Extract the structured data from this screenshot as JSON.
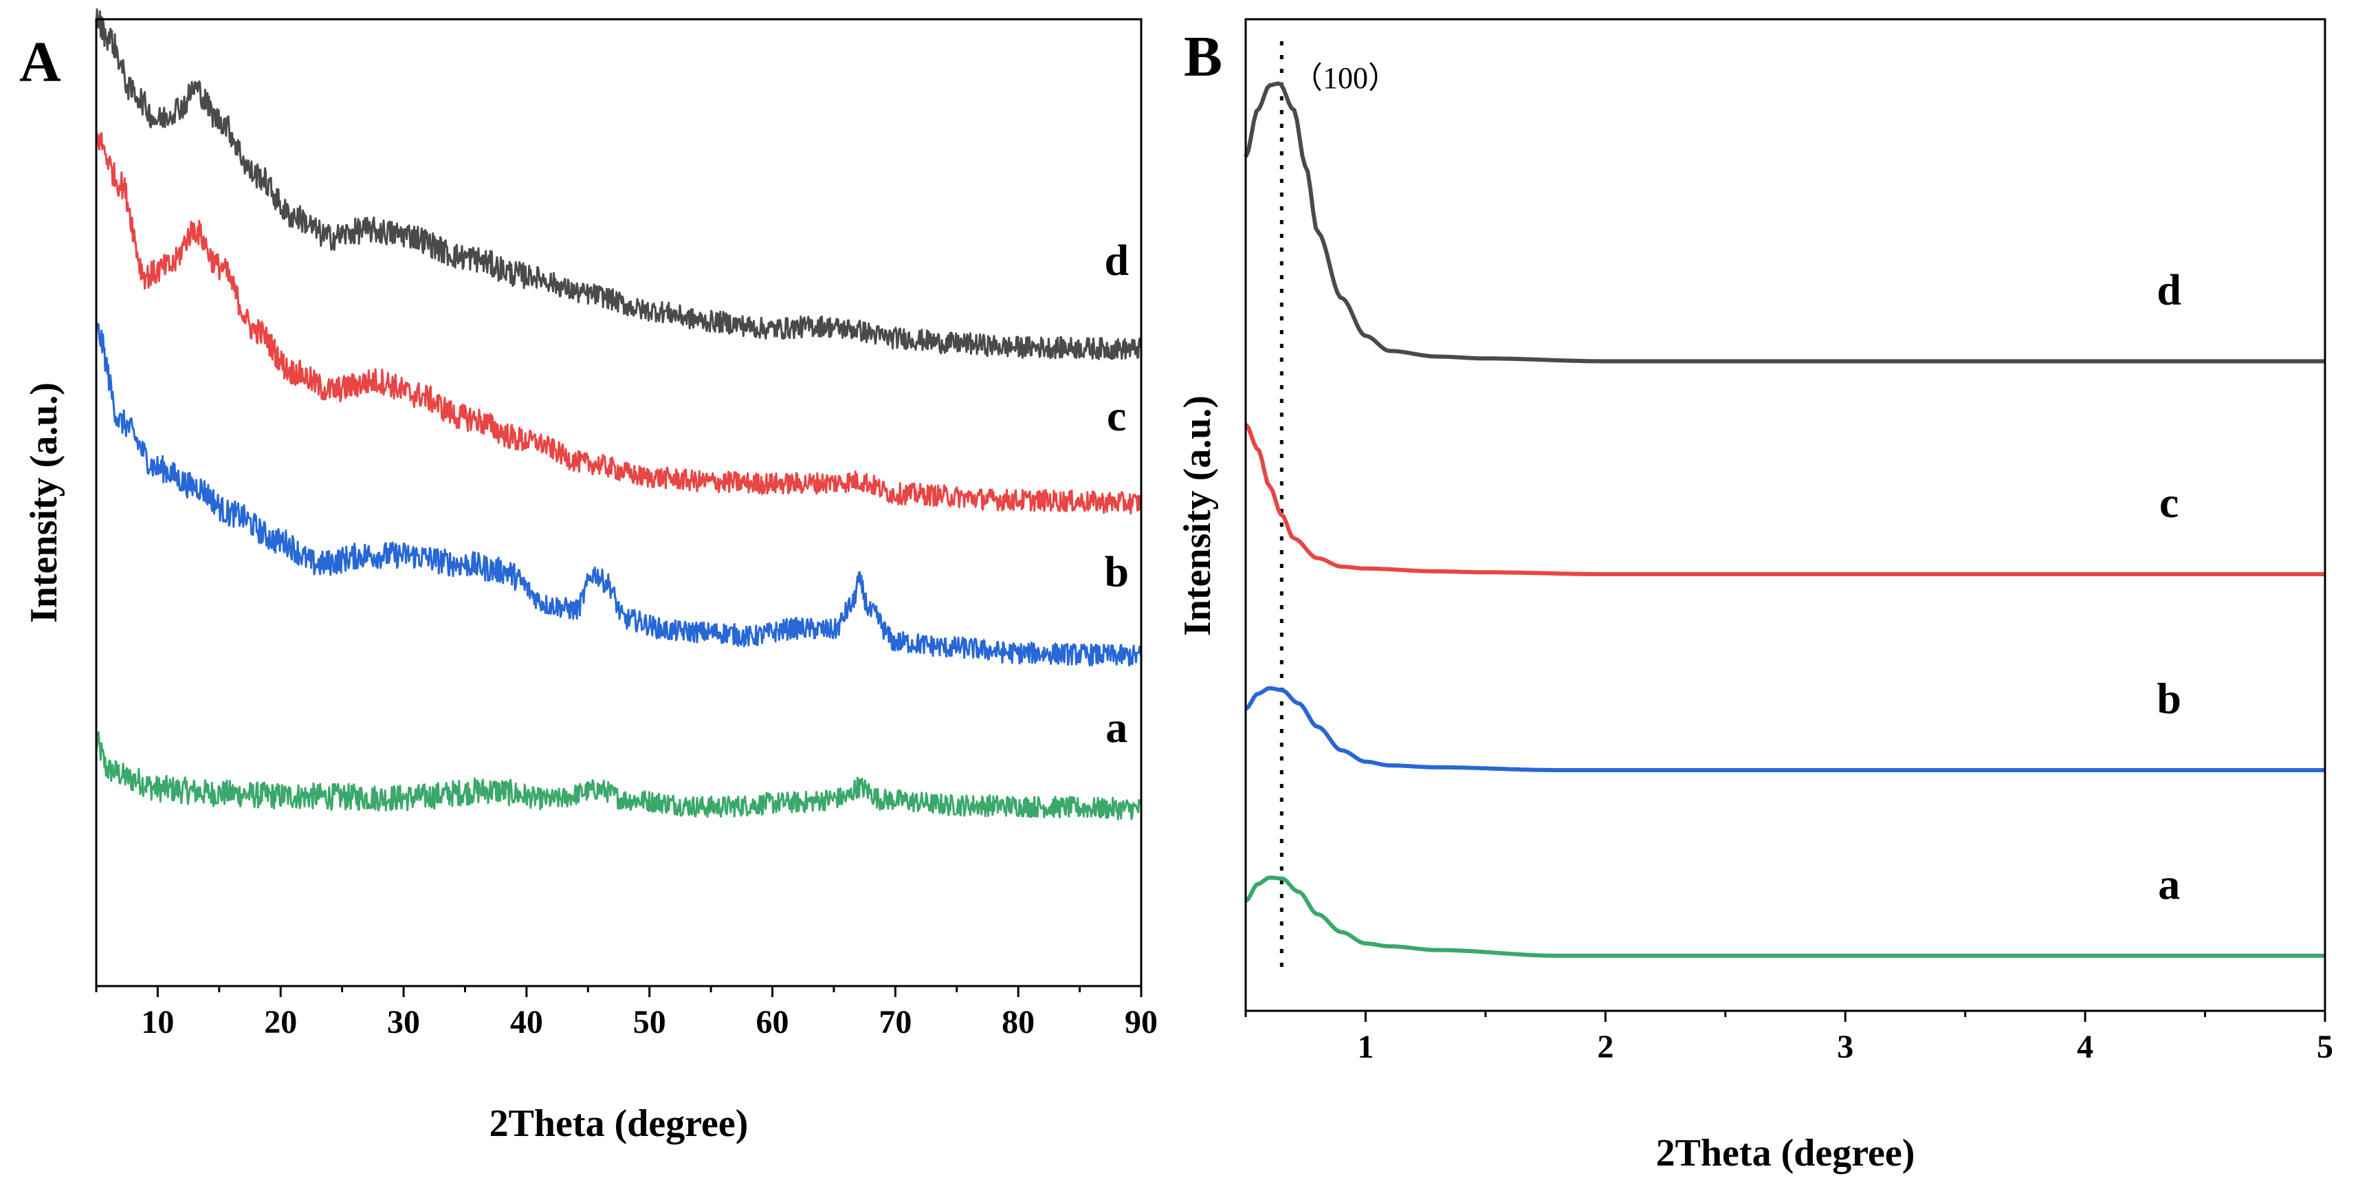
{
  "chart_data": [
    {
      "panel": "A",
      "type": "line",
      "xlabel": "2Theta (degree)",
      "ylabel": "Intensity (a.u.)",
      "xlim": [
        5,
        90
      ],
      "ylim": [
        0,
        100
      ],
      "xticks": [
        10,
        20,
        30,
        40,
        50,
        60,
        70,
        80,
        90
      ],
      "yticks": "none (arbitrary units)",
      "series": [
        {
          "name": "a",
          "color": "#3aa86a",
          "noisy": true,
          "baseline": 13,
          "label_x": 88,
          "points": [
            [
              5,
              21
            ],
            [
              6,
              18
            ],
            [
              8,
              17
            ],
            [
              10,
              16
            ],
            [
              15,
              15.5
            ],
            [
              20,
              15.2
            ],
            [
              30,
              15
            ],
            [
              37,
              15.8
            ],
            [
              42,
              14.8
            ],
            [
              46,
              15.9
            ],
            [
              48,
              14.8
            ],
            [
              55,
              14
            ],
            [
              62,
              14.5
            ],
            [
              66,
              15
            ],
            [
              67,
              16.2
            ],
            [
              69,
              14.8
            ],
            [
              75,
              14.2
            ],
            [
              90,
              13.8
            ]
          ]
        },
        {
          "name": "b",
          "color": "#2767d6",
          "noisy": true,
          "baseline": 30,
          "label_x": 88,
          "points": [
            [
              5,
              66
            ],
            [
              7,
              56
            ],
            [
              10,
              51
            ],
            [
              13,
              49
            ],
            [
              16,
              46
            ],
            [
              20,
              43
            ],
            [
              23,
              40.5
            ],
            [
              27,
              41.5
            ],
            [
              30,
              41.5
            ],
            [
              35,
              40.5
            ],
            [
              38,
              39.8
            ],
            [
              42,
              36
            ],
            [
              44,
              35.5
            ],
            [
              45.5,
              39.5
            ],
            [
              46.5,
              38.5
            ],
            [
              48,
              34.5
            ],
            [
              52,
              33.2
            ],
            [
              56,
              33
            ],
            [
              58,
              32.6
            ],
            [
              62,
              33.5
            ],
            [
              65,
              33.3
            ],
            [
              66.5,
              36
            ],
            [
              67,
              38.6
            ],
            [
              68,
              35.2
            ],
            [
              70,
              32
            ],
            [
              75,
              31.4
            ],
            [
              80,
              30.8
            ],
            [
              90,
              30.5
            ]
          ]
        },
        {
          "name": "c",
          "color": "#e84545",
          "noisy": true,
          "baseline": 47,
          "label_x": 88,
          "points": [
            [
              5,
              87
            ],
            [
              7,
              82
            ],
            [
              9,
              72
            ],
            [
              11,
              73
            ],
            [
              13,
              77
            ],
            [
              15,
              73
            ],
            [
              18,
              66
            ],
            [
              21,
              61.5
            ],
            [
              24,
              59.5
            ],
            [
              28,
              60.5
            ],
            [
              31,
              59
            ],
            [
              35,
              56.5
            ],
            [
              40,
              54
            ],
            [
              45,
              51.5
            ],
            [
              50,
              50
            ],
            [
              55,
              49.5
            ],
            [
              60,
              49.3
            ],
            [
              65,
              49.4
            ],
            [
              67,
              49.6
            ],
            [
              70,
              48.2
            ],
            [
              80,
              47.5
            ],
            [
              90,
              47.2
            ]
          ]
        },
        {
          "name": "d",
          "color": "#4a4a4a",
          "noisy": true,
          "baseline": 64,
          "label_x": 88,
          "points": [
            [
              5,
              100
            ],
            [
              6,
              98
            ],
            [
              8,
              92
            ],
            [
              10,
              89
            ],
            [
              12,
              90.5
            ],
            [
              13,
              92.5
            ],
            [
              15,
              89
            ],
            [
              18,
              83
            ],
            [
              21,
              78.5
            ],
            [
              24,
              76.2
            ],
            [
              27,
              77
            ],
            [
              30,
              76.5
            ],
            [
              35,
              74
            ],
            [
              40,
              72
            ],
            [
              45,
              70
            ],
            [
              50,
              68.2
            ],
            [
              55,
              67
            ],
            [
              60,
              66.2
            ],
            [
              64,
              66.5
            ],
            [
              66,
              66.2
            ],
            [
              70,
              65.2
            ],
            [
              75,
              64.6
            ],
            [
              80,
              64.2
            ],
            [
              90,
              64
            ]
          ]
        }
      ]
    },
    {
      "panel": "B",
      "type": "line",
      "xlabel": "2Theta (degree)",
      "ylabel": "Intensity (a.u.)",
      "xlim": [
        0.5,
        5
      ],
      "ylim": [
        0,
        100
      ],
      "xticks": [
        1,
        2,
        3,
        4,
        5
      ],
      "reference_line_x": 0.65,
      "annotation": "（100）",
      "series": [
        {
          "name": "a",
          "color": "#3aa86a",
          "noisy": false,
          "label_x": 4.35,
          "points": [
            [
              0.5,
              8
            ],
            [
              0.55,
              9.8
            ],
            [
              0.6,
              10.5
            ],
            [
              0.65,
              10.4
            ],
            [
              0.72,
              9
            ],
            [
              0.8,
              6.6
            ],
            [
              0.9,
              4.7
            ],
            [
              1.0,
              3.5
            ],
            [
              1.1,
              3.2
            ],
            [
              1.3,
              2.8
            ],
            [
              1.8,
              2.2
            ],
            [
              2.5,
              2.2
            ],
            [
              3.5,
              2.2
            ],
            [
              5,
              2.2
            ]
          ]
        },
        {
          "name": "b",
          "color": "#2767d6",
          "noisy": false,
          "label_x": 4.35,
          "points": [
            [
              0.5,
              28.4
            ],
            [
              0.55,
              30
            ],
            [
              0.6,
              30.6
            ],
            [
              0.65,
              30.4
            ],
            [
              0.72,
              29
            ],
            [
              0.8,
              26.5
            ],
            [
              0.9,
              24
            ],
            [
              1.0,
              22.8
            ],
            [
              1.1,
              22.4
            ],
            [
              1.3,
              22.2
            ],
            [
              1.8,
              21.9
            ],
            [
              2.5,
              21.9
            ],
            [
              3.5,
              21.9
            ],
            [
              5,
              21.9
            ]
          ]
        },
        {
          "name": "c",
          "color": "#e84545",
          "noisy": false,
          "label_x": 4.35,
          "points": [
            [
              0.5,
              58.6
            ],
            [
              0.55,
              56
            ],
            [
              0.6,
              52
            ],
            [
              0.65,
              49
            ],
            [
              0.7,
              46.5
            ],
            [
              0.8,
              44.4
            ],
            [
              0.9,
              43.5
            ],
            [
              1.0,
              43.3
            ],
            [
              1.3,
              43
            ],
            [
              1.5,
              42.9
            ],
            [
              2.0,
              42.7
            ],
            [
              3.0,
              42.7
            ],
            [
              5,
              42.7
            ]
          ]
        },
        {
          "name": "d",
          "color": "#4a4a4a",
          "noisy": false,
          "label_x": 4.35,
          "points": [
            [
              0.5,
              87
            ],
            [
              0.55,
              92
            ],
            [
              0.6,
              94.6
            ],
            [
              0.64,
              94.8
            ],
            [
              0.7,
              92
            ],
            [
              0.75,
              86
            ],
            [
              0.8,
              79
            ],
            [
              0.9,
              72
            ],
            [
              1.0,
              68
            ],
            [
              1.1,
              66.4
            ],
            [
              1.3,
              65.8
            ],
            [
              1.5,
              65.6
            ],
            [
              2.0,
              65.3
            ],
            [
              3.0,
              65.3
            ],
            [
              5,
              65.3
            ]
          ]
        }
      ]
    }
  ]
}
